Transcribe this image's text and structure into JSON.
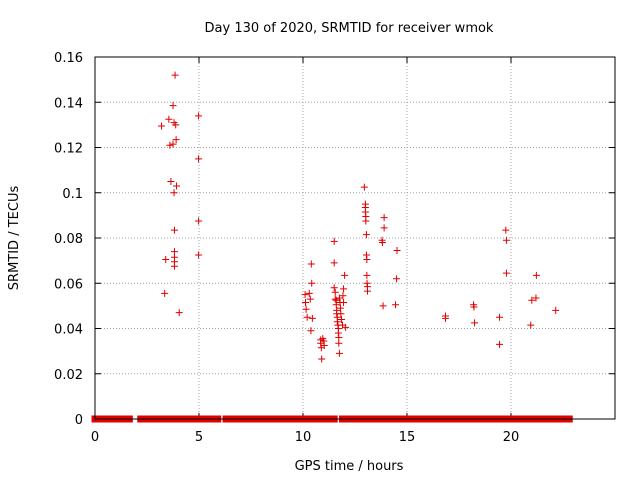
{
  "chart_data": {
    "type": "scatter",
    "title": "Day 130 of 2020, SRMTID for receiver wmok",
    "xlabel": "GPS time / hours",
    "ylabel": "SRMTID / TECUs",
    "xlim": [
      0,
      25
    ],
    "ylim": [
      0,
      0.16
    ],
    "xticks": [
      0,
      5,
      10,
      15,
      20
    ],
    "xtick_labels": [
      "0",
      "5",
      "10",
      "15",
      "20"
    ],
    "yticks": [
      0,
      0.02,
      0.04,
      0.06,
      0.08,
      0.1,
      0.12,
      0.14,
      0.16
    ],
    "ytick_labels": [
      "0",
      "0.02",
      "0.04",
      "0.06",
      "0.08",
      "0.1",
      "0.12",
      "0.14",
      "0.16"
    ],
    "grid": true,
    "marker": "+",
    "color": "#e00000",
    "zero_series_ranges": [
      [
        0,
        1.3
      ],
      [
        1.5,
        1.65
      ],
      [
        2.2,
        5.9
      ],
      [
        6.3,
        11.5
      ],
      [
        11.9,
        13.7
      ],
      [
        14.0,
        14.4
      ],
      [
        14.6,
        22.8
      ]
    ],
    "points": [
      [
        3.2,
        0.1295
      ],
      [
        3.35,
        0.0555
      ],
      [
        3.4,
        0.0705
      ],
      [
        3.55,
        0.1325
      ],
      [
        3.6,
        0.121
      ],
      [
        3.65,
        0.105
      ],
      [
        3.75,
        0.1385
      ],
      [
        3.75,
        0.1215
      ],
      [
        3.8,
        0.131
      ],
      [
        3.8,
        0.1
      ],
      [
        3.82,
        0.0835
      ],
      [
        3.82,
        0.074
      ],
      [
        3.82,
        0.0715
      ],
      [
        3.82,
        0.0695
      ],
      [
        3.82,
        0.0675
      ],
      [
        3.85,
        0.152
      ],
      [
        3.88,
        0.13
      ],
      [
        3.9,
        0.1235
      ],
      [
        3.92,
        0.103
      ],
      [
        4.05,
        0.047
      ],
      [
        4.98,
        0.134
      ],
      [
        4.98,
        0.115
      ],
      [
        4.98,
        0.0875
      ],
      [
        4.98,
        0.0725
      ],
      [
        10.1,
        0.055
      ],
      [
        10.12,
        0.0515
      ],
      [
        10.15,
        0.0485
      ],
      [
        10.2,
        0.045
      ],
      [
        10.3,
        0.0555
      ],
      [
        10.35,
        0.053
      ],
      [
        10.38,
        0.039
      ],
      [
        10.4,
        0.0685
      ],
      [
        10.42,
        0.06
      ],
      [
        10.45,
        0.0445
      ],
      [
        10.85,
        0.035
      ],
      [
        10.85,
        0.0335
      ],
      [
        10.88,
        0.0315
      ],
      [
        10.9,
        0.0265
      ],
      [
        10.95,
        0.0355
      ],
      [
        11.0,
        0.0345
      ],
      [
        11.02,
        0.0325
      ],
      [
        11.5,
        0.0785
      ],
      [
        11.5,
        0.069
      ],
      [
        11.5,
        0.058
      ],
      [
        11.55,
        0.056
      ],
      [
        11.55,
        0.053
      ],
      [
        11.6,
        0.0525
      ],
      [
        11.6,
        0.0505
      ],
      [
        11.62,
        0.048
      ],
      [
        11.62,
        0.0465
      ],
      [
        11.65,
        0.045
      ],
      [
        11.65,
        0.043
      ],
      [
        11.68,
        0.0415
      ],
      [
        11.7,
        0.04
      ],
      [
        11.7,
        0.038
      ],
      [
        11.72,
        0.036
      ],
      [
        11.72,
        0.0335
      ],
      [
        11.75,
        0.029
      ],
      [
        11.75,
        0.0535
      ],
      [
        11.78,
        0.0515
      ],
      [
        11.8,
        0.049
      ],
      [
        11.82,
        0.0465
      ],
      [
        11.85,
        0.044
      ],
      [
        11.9,
        0.0415
      ],
      [
        11.92,
        0.0545
      ],
      [
        11.95,
        0.0575
      ],
      [
        11.95,
        0.0515
      ],
      [
        12.0,
        0.0635
      ],
      [
        12.05,
        0.0405
      ],
      [
        12.95,
        0.1025
      ],
      [
        13.0,
        0.095
      ],
      [
        13.0,
        0.0935
      ],
      [
        13.0,
        0.0915
      ],
      [
        13.02,
        0.0895
      ],
      [
        13.02,
        0.0875
      ],
      [
        13.05,
        0.0815
      ],
      [
        13.05,
        0.0725
      ],
      [
        13.07,
        0.0705
      ],
      [
        13.07,
        0.0635
      ],
      [
        13.08,
        0.06
      ],
      [
        13.1,
        0.0585
      ],
      [
        13.1,
        0.0565
      ],
      [
        13.8,
        0.079
      ],
      [
        13.82,
        0.078
      ],
      [
        13.85,
        0.05
      ],
      [
        13.9,
        0.089
      ],
      [
        13.9,
        0.0845
      ],
      [
        14.45,
        0.0505
      ],
      [
        14.5,
        0.062
      ],
      [
        14.52,
        0.0745
      ],
      [
        16.85,
        0.0455
      ],
      [
        16.85,
        0.0445
      ],
      [
        18.2,
        0.0505
      ],
      [
        18.22,
        0.0495
      ],
      [
        18.25,
        0.0425
      ],
      [
        19.45,
        0.045
      ],
      [
        19.45,
        0.033
      ],
      [
        19.75,
        0.0835
      ],
      [
        19.78,
        0.079
      ],
      [
        19.78,
        0.0645
      ],
      [
        20.95,
        0.0415
      ],
      [
        21.0,
        0.0525
      ],
      [
        21.2,
        0.0535
      ],
      [
        21.22,
        0.0635
      ],
      [
        22.15,
        0.048
      ]
    ]
  }
}
